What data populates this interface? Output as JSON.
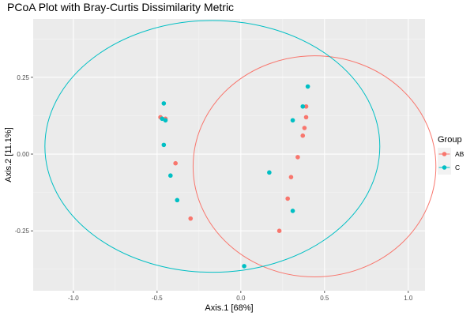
{
  "chart_data": {
    "type": "scatter",
    "title": "PCoA Plot with Bray-Curtis Dissimilarity Metric",
    "xlabel": "Axis.1   [68%]",
    "ylabel": "Axis.2   [11.1%]",
    "xlim": [
      -1.24,
      1.1
    ],
    "ylim": [
      -0.445,
      0.44
    ],
    "x_ticks": [
      -1.0,
      -0.5,
      0.0,
      0.5,
      1.0
    ],
    "x_tick_labels": [
      "-1.0",
      "-0.5",
      "0.0",
      "0.5",
      "1.0"
    ],
    "y_ticks": [
      -0.25,
      0.0,
      0.25
    ],
    "y_tick_labels": [
      "-0.25",
      "0.00",
      "0.25"
    ],
    "grid": true,
    "legend": {
      "title": "Group",
      "position": "right"
    },
    "series": [
      {
        "name": "AB",
        "color": "#F8766D",
        "points": [
          [
            -0.48,
            0.12
          ],
          [
            -0.45,
            0.115
          ],
          [
            -0.39,
            -0.03
          ],
          [
            -0.3,
            -0.21
          ],
          [
            0.23,
            -0.25
          ],
          [
            0.28,
            -0.145
          ],
          [
            0.3,
            -0.075
          ],
          [
            0.34,
            -0.01
          ],
          [
            0.37,
            0.06
          ],
          [
            0.38,
            0.085
          ],
          [
            0.39,
            0.12
          ],
          [
            0.39,
            0.155
          ]
        ],
        "ellipse": {
          "cx": 0.44,
          "cy": -0.04,
          "rx": 0.725,
          "ry": 0.36
        }
      },
      {
        "name": "C",
        "color": "#00BFC4",
        "points": [
          [
            -0.46,
            0.165
          ],
          [
            -0.47,
            0.115
          ],
          [
            -0.45,
            0.11
          ],
          [
            -0.46,
            0.03
          ],
          [
            -0.42,
            -0.07
          ],
          [
            -0.38,
            -0.15
          ],
          [
            0.02,
            -0.365
          ],
          [
            0.17,
            -0.06
          ],
          [
            0.31,
            -0.185
          ],
          [
            0.31,
            0.11
          ],
          [
            0.37,
            0.155
          ],
          [
            0.4,
            0.22
          ]
        ],
        "ellipse": {
          "cx": -0.17,
          "cy": 0.025,
          "rx": 1.0,
          "ry": 0.41
        }
      }
    ]
  }
}
